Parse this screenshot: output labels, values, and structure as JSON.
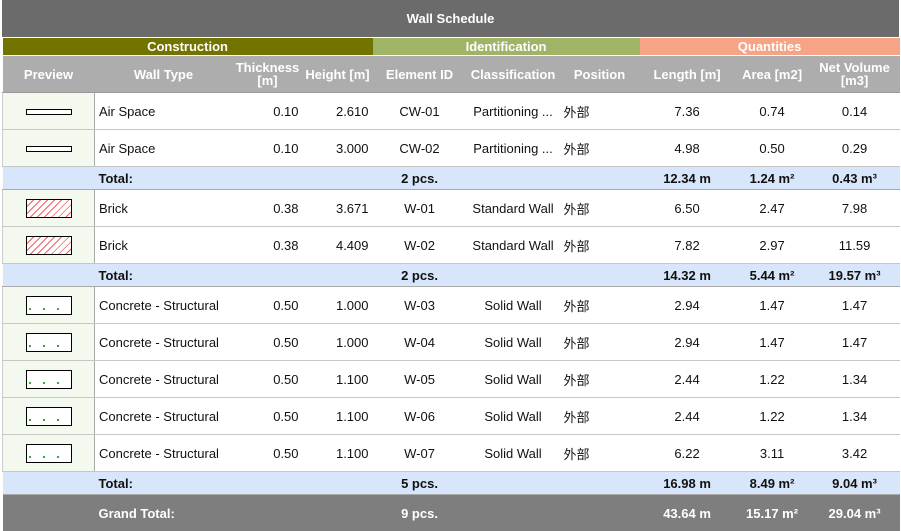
{
  "title": "Wall Schedule",
  "groups": [
    {
      "label": "Construction",
      "color": "#737300"
    },
    {
      "label": "Identification",
      "color": "#a0b468"
    },
    {
      "label": "Quantities",
      "color": "#f6a386"
    }
  ],
  "columns": [
    "Preview",
    "Wall Type",
    "Thickness [m]",
    "Height [m]",
    "Element ID",
    "Classification",
    "Position",
    "Length [m]",
    "Area [m2]",
    "Net Volume [m3]"
  ],
  "sections": [
    {
      "rows": [
        {
          "preview": "air-space-swatch",
          "type": "Air Space",
          "thickness": "0.10",
          "height": "2.610",
          "id": "CW-01",
          "classification": "Partitioning ...",
          "position": "外部",
          "length": "7.36",
          "area": "0.74",
          "volume": "0.14"
        },
        {
          "preview": "air-space-swatch",
          "type": "Air Space",
          "thickness": "0.10",
          "height": "3.000",
          "id": "CW-02",
          "classification": "Partitioning ...",
          "position": "外部",
          "length": "4.98",
          "area": "0.50",
          "volume": "0.29"
        }
      ],
      "total": {
        "label": "Total:",
        "count": "2 pcs.",
        "length": "12.34 m",
        "area": "1.24 m²",
        "volume": "0.43 m³"
      }
    },
    {
      "rows": [
        {
          "preview": "brick-swatch",
          "type": "Brick",
          "thickness": "0.38",
          "height": "3.671",
          "id": "W-01",
          "classification": "Standard Wall",
          "position": "外部",
          "length": "6.50",
          "area": "2.47",
          "volume": "7.98"
        },
        {
          "preview": "brick-swatch",
          "type": "Brick",
          "thickness": "0.38",
          "height": "4.409",
          "id": "W-02",
          "classification": "Standard Wall",
          "position": "外部",
          "length": "7.82",
          "area": "2.97",
          "volume": "11.59"
        }
      ],
      "total": {
        "label": "Total:",
        "count": "2 pcs.",
        "length": "14.32 m",
        "area": "5.44 m²",
        "volume": "19.57 m³"
      }
    },
    {
      "rows": [
        {
          "preview": "concrete-swatch",
          "type": "Concrete - Structural",
          "thickness": "0.50",
          "height": "1.000",
          "id": "W-03",
          "classification": "Solid Wall",
          "position": "外部",
          "length": "2.94",
          "area": "1.47",
          "volume": "1.47"
        },
        {
          "preview": "concrete-swatch",
          "type": "Concrete - Structural",
          "thickness": "0.50",
          "height": "1.000",
          "id": "W-04",
          "classification": "Solid Wall",
          "position": "外部",
          "length": "2.94",
          "area": "1.47",
          "volume": "1.47"
        },
        {
          "preview": "concrete-swatch",
          "type": "Concrete - Structural",
          "thickness": "0.50",
          "height": "1.100",
          "id": "W-05",
          "classification": "Solid Wall",
          "position": "外部",
          "length": "2.44",
          "area": "1.22",
          "volume": "1.34"
        },
        {
          "preview": "concrete-swatch",
          "type": "Concrete - Structural",
          "thickness": "0.50",
          "height": "1.100",
          "id": "W-06",
          "classification": "Solid Wall",
          "position": "外部",
          "length": "2.44",
          "area": "1.22",
          "volume": "1.34"
        },
        {
          "preview": "concrete-swatch",
          "type": "Concrete - Structural",
          "thickness": "0.50",
          "height": "1.100",
          "id": "W-07",
          "classification": "Solid Wall",
          "position": "外部",
          "length": "6.22",
          "area": "3.11",
          "volume": "3.42"
        }
      ],
      "total": {
        "label": "Total:",
        "count": "5 pcs.",
        "length": "16.98 m",
        "area": "8.49 m²",
        "volume": "9.04 m³"
      }
    }
  ],
  "grand_total": {
    "label": "Grand Total:",
    "count": "9 pcs.",
    "length": "43.64 m",
    "area": "15.17 m²",
    "volume": "29.04 m³"
  }
}
